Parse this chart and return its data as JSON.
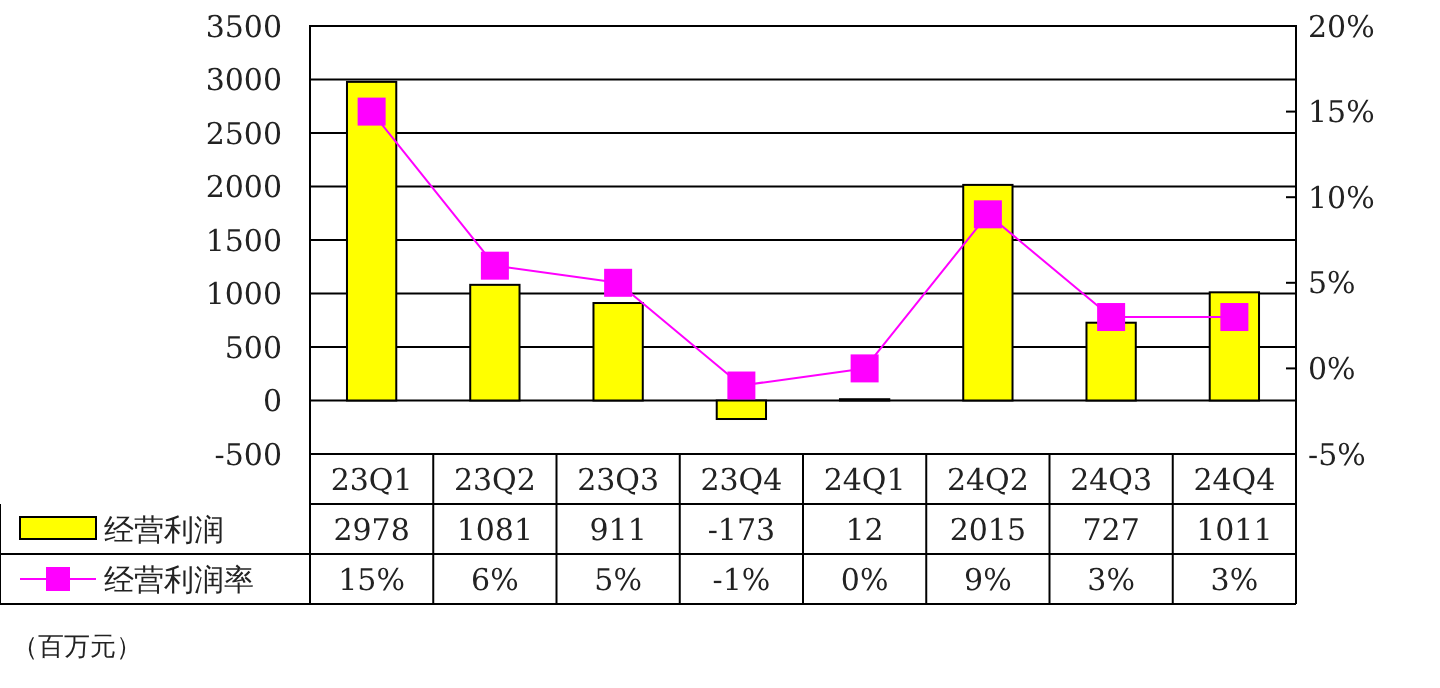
{
  "chart_data": {
    "type": "bar",
    "categories": [
      "23Q1",
      "23Q2",
      "23Q3",
      "23Q4",
      "24Q1",
      "24Q2",
      "24Q3",
      "24Q4"
    ],
    "series": [
      {
        "name": "经营利润",
        "color": "#ffff00",
        "values": [
          2978,
          1081,
          911,
          -173,
          12,
          2015,
          727,
          1011
        ],
        "value_labels": [
          "2978",
          "1081",
          "911",
          "-173",
          "12",
          "2015",
          "727",
          "1011"
        ]
      },
      {
        "name": "经营利润率",
        "type": "line",
        "axis": "y2",
        "color": "#ff00ff",
        "marker": "square",
        "values": [
          15,
          6,
          5,
          -1,
          0,
          9,
          3,
          3
        ],
        "value_labels": [
          "15%",
          "6%",
          "5%",
          "-1%",
          "0%",
          "9%",
          "3%",
          "3%"
        ]
      }
    ],
    "ylim": [
      -500,
      3500
    ],
    "yticks": [
      -500,
      0,
      500,
      1000,
      1500,
      2000,
      2500,
      3000,
      3500
    ],
    "y2lim": [
      -5,
      20
    ],
    "y2ticks": [
      {
        "value": -5,
        "label": "-5%"
      },
      {
        "value": 0,
        "label": "0%"
      },
      {
        "value": 5,
        "label": "5%"
      },
      {
        "value": 10,
        "label": "10%"
      },
      {
        "value": 15,
        "label": "15%"
      },
      {
        "value": 20,
        "label": "20%"
      }
    ],
    "grid": "y",
    "legend": "left",
    "annotations": [
      "（百万元）"
    ]
  }
}
